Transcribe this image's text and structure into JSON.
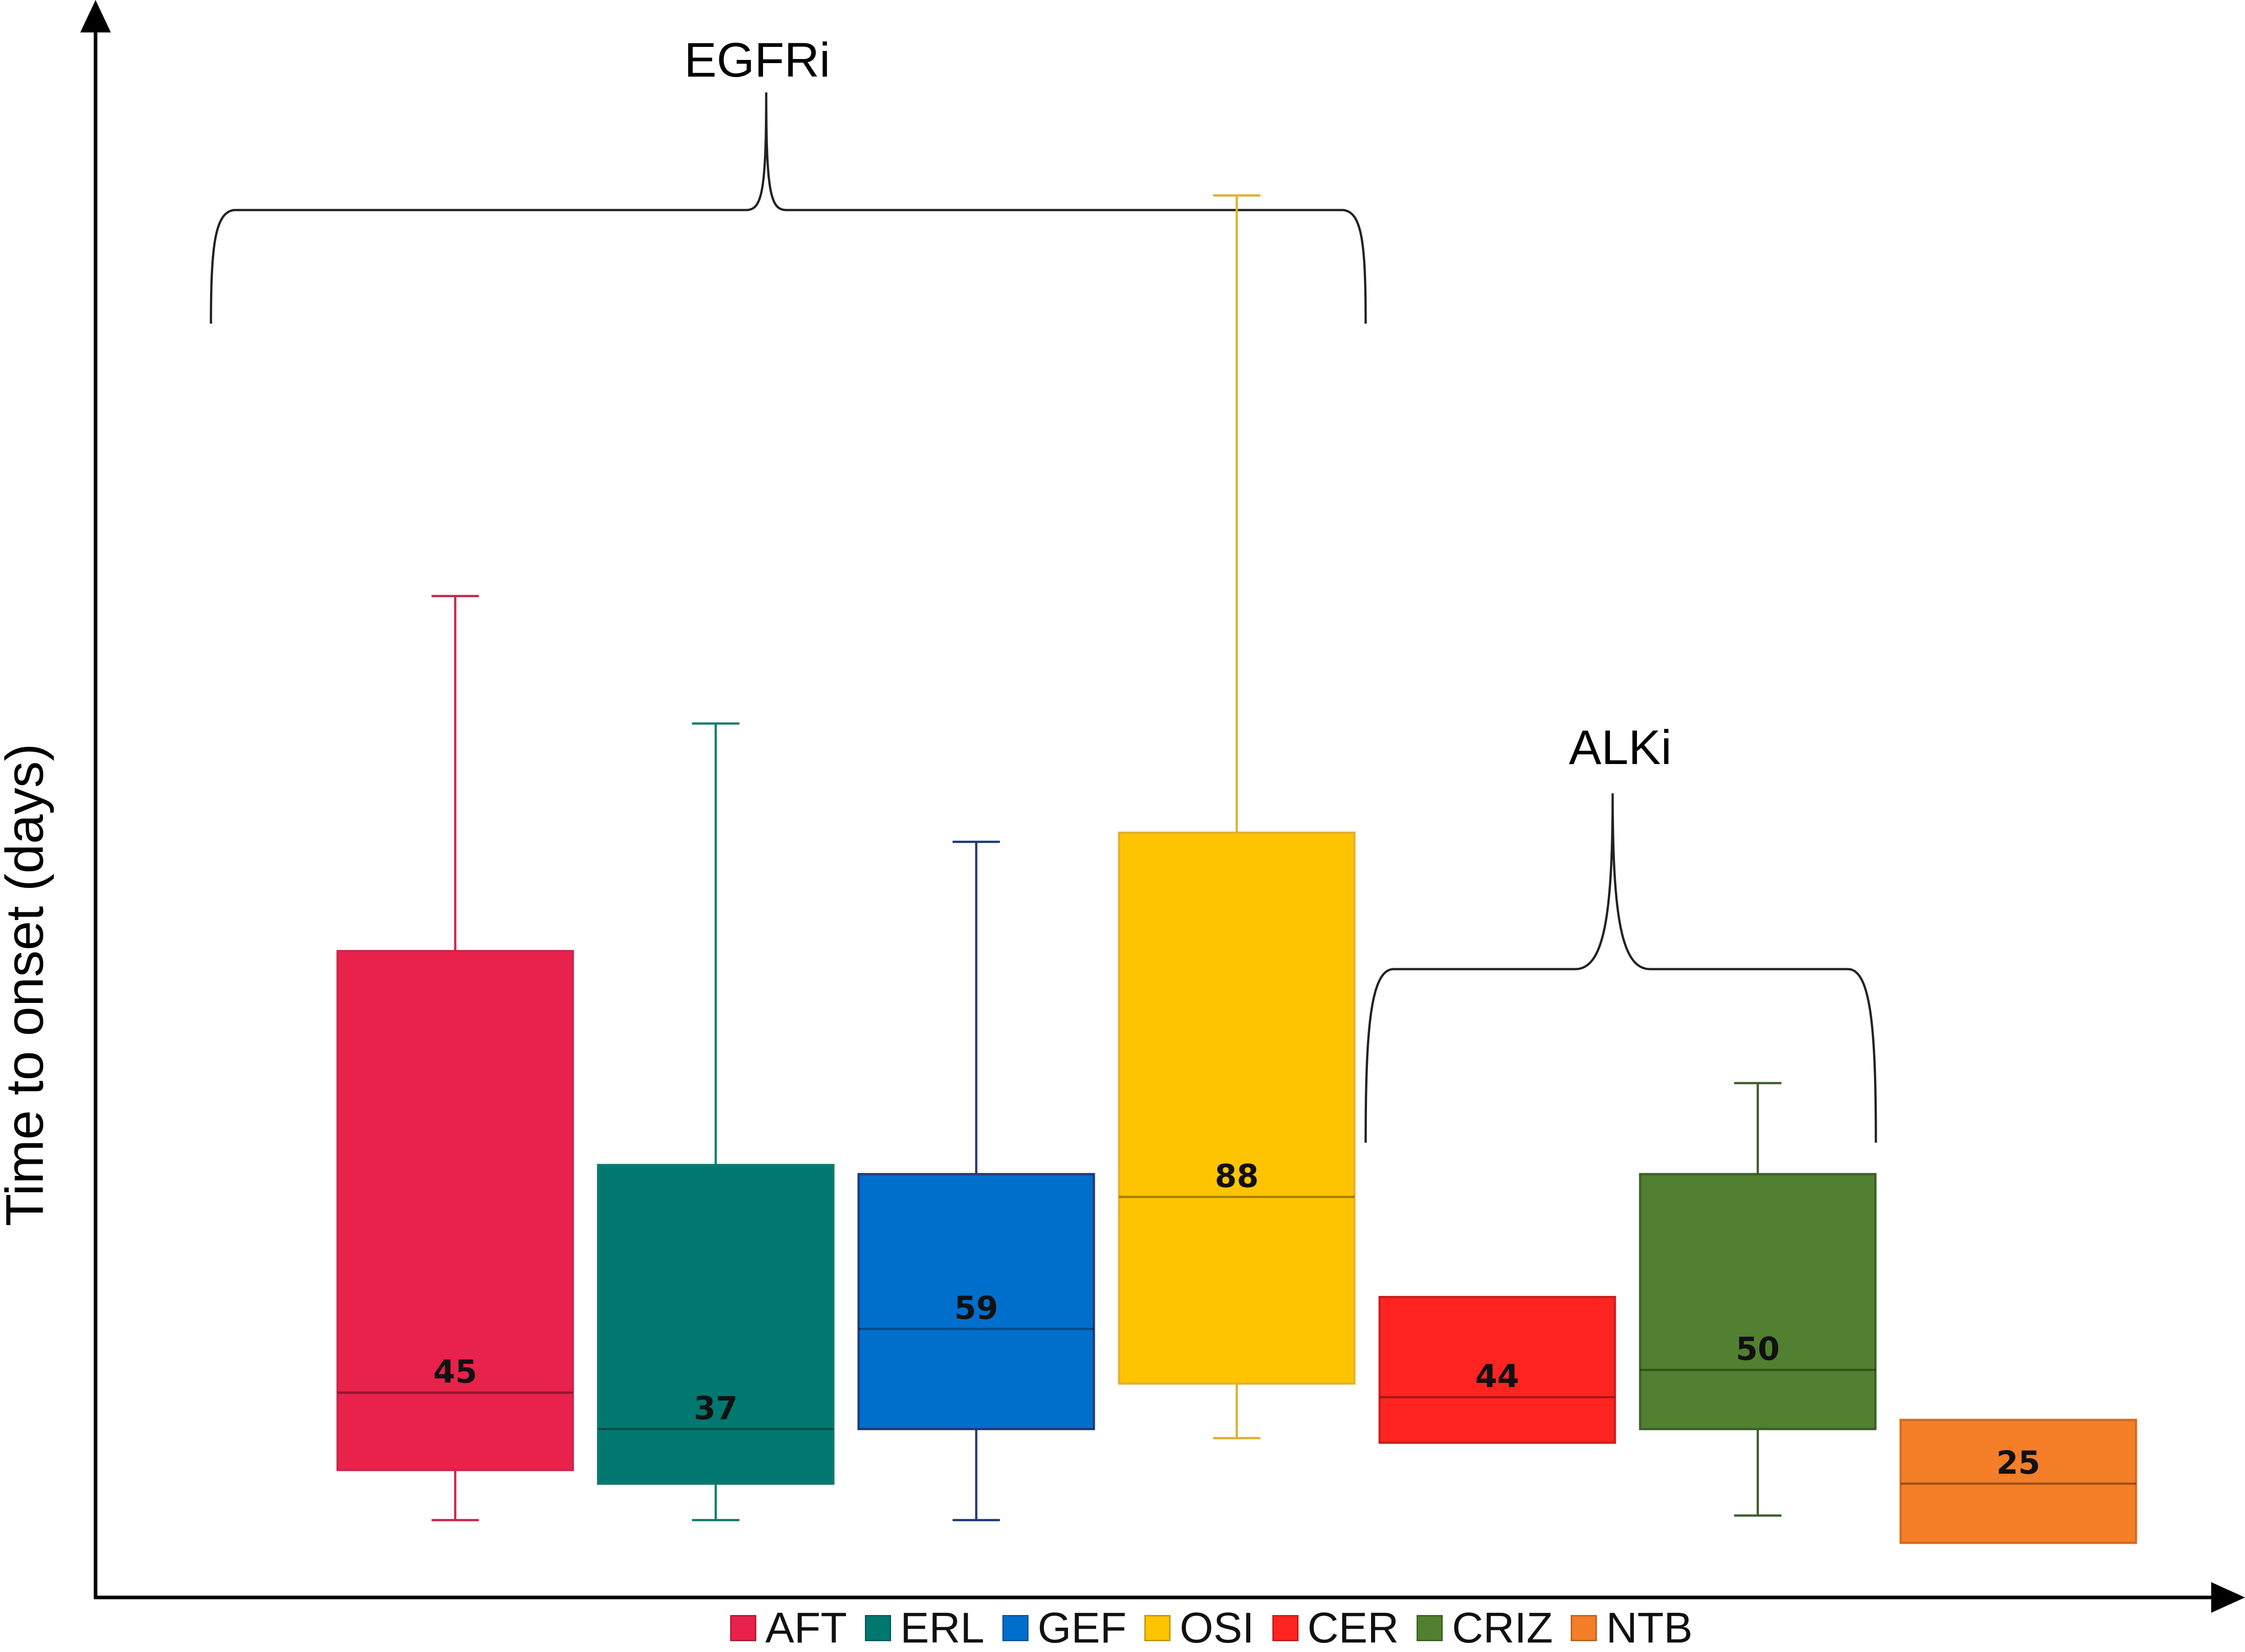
{
  "chart_data": {
    "type": "box",
    "ylabel": "Time to onset (days)",
    "xlabel": "",
    "axis_ticks_visible": false,
    "grid": false,
    "legend_position": "bottom",
    "groups": [
      {
        "label": "EGFRi",
        "members": [
          "AFT",
          "ERL",
          "GEF",
          "OSI"
        ]
      },
      {
        "label": "ALKi",
        "members": [
          "CER",
          "CRIZ",
          "NTB"
        ]
      }
    ],
    "series": [
      {
        "name": "AFT",
        "color": "#E8224A",
        "whisker_color": "#C8284E",
        "median_label": "45",
        "median": 45,
        "q1": 28,
        "q3": 142,
        "whisker_low": 17,
        "whisker_high": 220
      },
      {
        "name": "ERL",
        "color": "#00786F",
        "whisker_color": "#117A6E",
        "median_label": "37",
        "median": 37,
        "q1": 25,
        "q3": 95,
        "whisker_low": 17,
        "whisker_high": 192
      },
      {
        "name": "GEF",
        "color": "#006FCC",
        "whisker_color": "#1F3A7A",
        "median_label": "59",
        "median": 59,
        "q1": 37,
        "q3": 93,
        "whisker_low": 17,
        "whisker_high": 166
      },
      {
        "name": "OSI",
        "color": "#FFC400",
        "whisker_color": "#E2B030",
        "median_label": "88",
        "median": 88,
        "q1": 47,
        "q3": 168,
        "whisker_low": 35,
        "whisker_high": 308
      },
      {
        "name": "CER",
        "color": "#FF2420",
        "whisker_color": "#C8201C",
        "median_label": "44",
        "median": 44,
        "q1": 34,
        "q3": 66,
        "whisker_low": 34,
        "whisker_high": 66
      },
      {
        "name": "CRIZ",
        "color": "#508030",
        "whisker_color": "#3C5E28",
        "median_label": "50",
        "median": 50,
        "q1": 37,
        "q3": 93,
        "whisker_low": 18,
        "whisker_high": 113
      },
      {
        "name": "NTB",
        "color": "#F57E28",
        "whisker_color": "#D56A1E",
        "median_label": "25",
        "median": 25,
        "q1": 12,
        "q3": 39,
        "whisker_low": 12,
        "whisker_high": 39
      }
    ],
    "ylim": [
      0,
      345
    ]
  }
}
